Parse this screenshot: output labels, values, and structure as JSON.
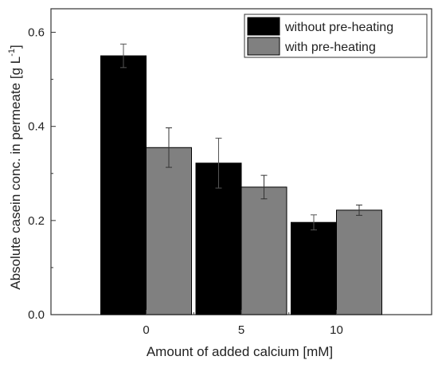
{
  "chart_data": {
    "type": "bar",
    "title": "",
    "xlabel": "Amount of added calcium [mM]",
    "ylabel": "Absolute casein conc. in permeate [g L",
    "ylabel_superscript": "-1",
    "ylabel_suffix": "]",
    "categories": [
      "0",
      "5",
      "10"
    ],
    "ylim": [
      0,
      0.65
    ],
    "yticks": [
      "0.0",
      "0.2",
      "0.4",
      "0.6"
    ],
    "ytick_values": [
      0.0,
      0.2,
      0.4,
      0.6
    ],
    "grid": false,
    "legend_position": "top-right",
    "series": [
      {
        "name": "without pre-heating",
        "color": "#000000",
        "values": [
          0.55,
          0.322,
          0.196
        ],
        "errors": [
          0.025,
          0.053,
          0.016
        ]
      },
      {
        "name": "with pre-heating",
        "color": "#808080",
        "values": [
          0.355,
          0.271,
          0.222
        ],
        "errors": [
          0.042,
          0.025,
          0.011
        ]
      }
    ]
  }
}
